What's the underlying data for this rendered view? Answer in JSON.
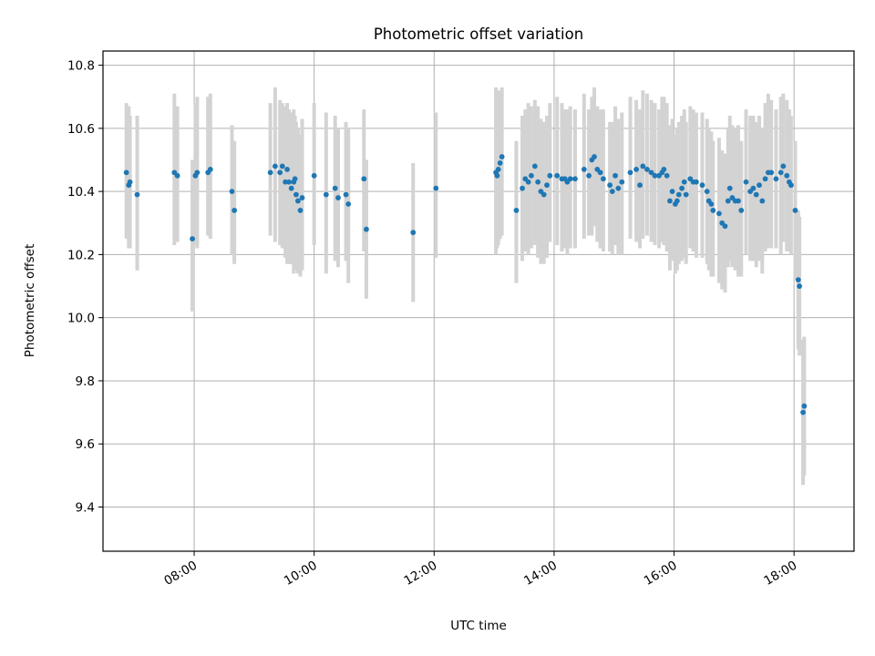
{
  "chart_data": {
    "type": "scatter",
    "title": "Photometric offset variation",
    "xlabel": "UTC time",
    "ylabel": "Photometric offset",
    "x_unit": "hours UTC",
    "xlim": [
      6.48,
      19.0
    ],
    "ylim": [
      9.26,
      10.845
    ],
    "x_ticks": [
      {
        "value": 8,
        "label": "08:00"
      },
      {
        "value": 10,
        "label": "10:00"
      },
      {
        "value": 12,
        "label": "12:00"
      },
      {
        "value": 14,
        "label": "14:00"
      },
      {
        "value": 16,
        "label": "16:00"
      },
      {
        "value": 18,
        "label": "18:00"
      }
    ],
    "y_ticks": [
      {
        "value": 9.4,
        "label": "9.4"
      },
      {
        "value": 9.6,
        "label": "9.6"
      },
      {
        "value": 9.8,
        "label": "9.8"
      },
      {
        "value": 10.0,
        "label": "10.0"
      },
      {
        "value": 10.2,
        "label": "10.2"
      },
      {
        "value": 10.4,
        "label": "10.4"
      },
      {
        "value": 10.6,
        "label": "10.6"
      },
      {
        "value": 10.8,
        "label": "10.8"
      }
    ],
    "grid": true,
    "marker_color": "#1f77b4",
    "errorbar_color": "#d3d3d3",
    "points": [
      [
        6.87,
        10.46,
        10.25,
        10.68
      ],
      [
        6.91,
        10.42,
        10.22,
        10.67
      ],
      [
        6.93,
        10.43,
        10.22,
        10.64
      ],
      [
        7.05,
        10.39,
        10.15,
        10.64
      ],
      [
        7.67,
        10.46,
        10.23,
        10.71
      ],
      [
        7.72,
        10.45,
        10.24,
        10.67
      ],
      [
        7.97,
        10.25,
        10.02,
        10.5
      ],
      [
        8.02,
        10.45,
        10.23,
        10.68
      ],
      [
        8.05,
        10.46,
        10.22,
        10.7
      ],
      [
        8.23,
        10.46,
        10.26,
        10.7
      ],
      [
        8.27,
        10.47,
        10.25,
        10.71
      ],
      [
        8.63,
        10.4,
        10.2,
        10.61
      ],
      [
        8.67,
        10.34,
        10.17,
        10.56
      ],
      [
        9.27,
        10.46,
        10.26,
        10.68
      ],
      [
        9.35,
        10.48,
        10.24,
        10.73
      ],
      [
        9.43,
        10.46,
        10.23,
        10.69
      ],
      [
        9.47,
        10.48,
        10.22,
        10.68
      ],
      [
        9.52,
        10.43,
        10.19,
        10.67
      ],
      [
        9.55,
        10.47,
        10.17,
        10.68
      ],
      [
        9.58,
        10.43,
        10.17,
        10.66
      ],
      [
        9.62,
        10.41,
        10.17,
        10.65
      ],
      [
        9.66,
        10.43,
        10.14,
        10.66
      ],
      [
        9.68,
        10.44,
        10.16,
        10.64
      ],
      [
        9.7,
        10.39,
        10.15,
        10.62
      ],
      [
        9.73,
        10.37,
        10.14,
        10.6
      ],
      [
        9.77,
        10.34,
        10.13,
        10.58
      ],
      [
        9.8,
        10.38,
        10.15,
        10.63
      ],
      [
        10.0,
        10.45,
        10.23,
        10.68
      ],
      [
        10.2,
        10.39,
        10.14,
        10.65
      ],
      [
        10.35,
        10.41,
        10.18,
        10.64
      ],
      [
        10.4,
        10.38,
        10.16,
        10.6
      ],
      [
        10.53,
        10.39,
        10.18,
        10.62
      ],
      [
        10.57,
        10.36,
        10.11,
        10.6
      ],
      [
        10.83,
        10.44,
        10.21,
        10.66
      ],
      [
        10.87,
        10.28,
        10.06,
        10.5
      ],
      [
        11.65,
        10.27,
        10.05,
        10.49
      ],
      [
        12.03,
        10.41,
        10.19,
        10.65
      ],
      [
        13.03,
        10.46,
        10.2,
        10.73
      ],
      [
        13.05,
        10.45,
        10.22,
        10.7
      ],
      [
        13.07,
        10.47,
        10.23,
        10.72
      ],
      [
        13.1,
        10.49,
        10.25,
        10.71
      ],
      [
        13.13,
        10.51,
        10.26,
        10.73
      ],
      [
        13.37,
        10.34,
        10.11,
        10.56
      ],
      [
        13.47,
        10.41,
        10.18,
        10.64
      ],
      [
        13.52,
        10.44,
        10.21,
        10.66
      ],
      [
        13.57,
        10.43,
        10.2,
        10.68
      ],
      [
        13.62,
        10.45,
        10.22,
        10.67
      ],
      [
        13.68,
        10.48,
        10.23,
        10.69
      ],
      [
        13.73,
        10.43,
        10.19,
        10.67
      ],
      [
        13.78,
        10.4,
        10.17,
        10.63
      ],
      [
        13.83,
        10.39,
        10.17,
        10.62
      ],
      [
        13.88,
        10.42,
        10.19,
        10.64
      ],
      [
        13.93,
        10.45,
        10.24,
        10.68
      ],
      [
        14.05,
        10.45,
        10.23,
        10.7
      ],
      [
        14.13,
        10.44,
        10.21,
        10.68
      ],
      [
        14.18,
        10.44,
        10.22,
        10.66
      ],
      [
        14.22,
        10.43,
        10.2,
        10.66
      ],
      [
        14.27,
        10.44,
        10.22,
        10.67
      ],
      [
        14.35,
        10.44,
        10.22,
        10.66
      ],
      [
        14.5,
        10.47,
        10.25,
        10.71
      ],
      [
        14.58,
        10.45,
        10.26,
        10.66
      ],
      [
        14.63,
        10.5,
        10.26,
        10.7
      ],
      [
        14.67,
        10.51,
        10.29,
        10.73
      ],
      [
        14.72,
        10.47,
        10.24,
        10.67
      ],
      [
        14.77,
        10.46,
        10.22,
        10.66
      ],
      [
        14.82,
        10.44,
        10.21,
        10.66
      ],
      [
        14.93,
        10.42,
        10.21,
        10.62
      ],
      [
        14.97,
        10.4,
        10.2,
        10.62
      ],
      [
        15.02,
        10.45,
        10.23,
        10.67
      ],
      [
        15.07,
        10.41,
        10.2,
        10.63
      ],
      [
        15.13,
        10.43,
        10.2,
        10.65
      ],
      [
        15.27,
        10.46,
        10.25,
        10.7
      ],
      [
        15.37,
        10.47,
        10.24,
        10.69
      ],
      [
        15.43,
        10.42,
        10.22,
        10.66
      ],
      [
        15.48,
        10.48,
        10.25,
        10.72
      ],
      [
        15.55,
        10.47,
        10.26,
        10.71
      ],
      [
        15.62,
        10.46,
        10.24,
        10.69
      ],
      [
        15.68,
        10.45,
        10.23,
        10.68
      ],
      [
        15.75,
        10.45,
        10.22,
        10.66
      ],
      [
        15.8,
        10.46,
        10.24,
        10.7
      ],
      [
        15.83,
        10.47,
        10.23,
        10.7
      ],
      [
        15.88,
        10.45,
        10.21,
        10.68
      ],
      [
        15.93,
        10.37,
        10.15,
        10.61
      ],
      [
        15.97,
        10.4,
        10.18,
        10.63
      ],
      [
        16.02,
        10.36,
        10.14,
        10.58
      ],
      [
        16.05,
        10.37,
        10.15,
        10.6
      ],
      [
        16.08,
        10.39,
        10.17,
        10.62
      ],
      [
        16.13,
        10.41,
        10.18,
        10.64
      ],
      [
        16.17,
        10.43,
        10.19,
        10.66
      ],
      [
        16.2,
        10.39,
        10.17,
        10.62
      ],
      [
        16.27,
        10.44,
        10.22,
        10.67
      ],
      [
        16.32,
        10.43,
        10.21,
        10.66
      ],
      [
        16.37,
        10.43,
        10.19,
        10.65
      ],
      [
        16.47,
        10.42,
        10.19,
        10.65
      ],
      [
        16.55,
        10.4,
        10.17,
        10.63
      ],
      [
        16.58,
        10.37,
        10.15,
        10.6
      ],
      [
        16.62,
        10.36,
        10.13,
        10.59
      ],
      [
        16.65,
        10.34,
        10.13,
        10.56
      ],
      [
        16.75,
        10.33,
        10.11,
        10.57
      ],
      [
        16.8,
        10.3,
        10.09,
        10.53
      ],
      [
        16.85,
        10.29,
        10.08,
        10.52
      ],
      [
        16.9,
        10.37,
        10.16,
        10.6
      ],
      [
        16.93,
        10.41,
        10.18,
        10.64
      ],
      [
        16.97,
        10.38,
        10.16,
        10.61
      ],
      [
        17.02,
        10.37,
        10.15,
        10.6
      ],
      [
        17.07,
        10.37,
        10.13,
        10.61
      ],
      [
        17.12,
        10.34,
        10.13,
        10.56
      ],
      [
        17.2,
        10.43,
        10.2,
        10.66
      ],
      [
        17.27,
        10.4,
        10.18,
        10.64
      ],
      [
        17.32,
        10.41,
        10.18,
        10.64
      ],
      [
        17.37,
        10.39,
        10.16,
        10.62
      ],
      [
        17.42,
        10.42,
        10.18,
        10.64
      ],
      [
        17.47,
        10.37,
        10.14,
        10.6
      ],
      [
        17.52,
        10.44,
        10.21,
        10.68
      ],
      [
        17.57,
        10.46,
        10.22,
        10.71
      ],
      [
        17.62,
        10.46,
        10.22,
        10.69
      ],
      [
        17.7,
        10.44,
        10.22,
        10.66
      ],
      [
        17.78,
        10.46,
        10.2,
        10.7
      ],
      [
        17.82,
        10.48,
        10.24,
        10.71
      ],
      [
        17.88,
        10.45,
        10.21,
        10.69
      ],
      [
        17.92,
        10.43,
        10.21,
        10.66
      ],
      [
        17.95,
        10.42,
        10.2,
        10.64
      ],
      [
        18.02,
        10.34,
        10.12,
        10.56
      ],
      [
        18.07,
        10.12,
        9.9,
        10.34
      ],
      [
        18.09,
        10.1,
        9.88,
        10.32
      ],
      [
        18.15,
        9.7,
        9.47,
        9.93
      ],
      [
        18.17,
        9.72,
        9.5,
        9.94
      ]
    ]
  }
}
